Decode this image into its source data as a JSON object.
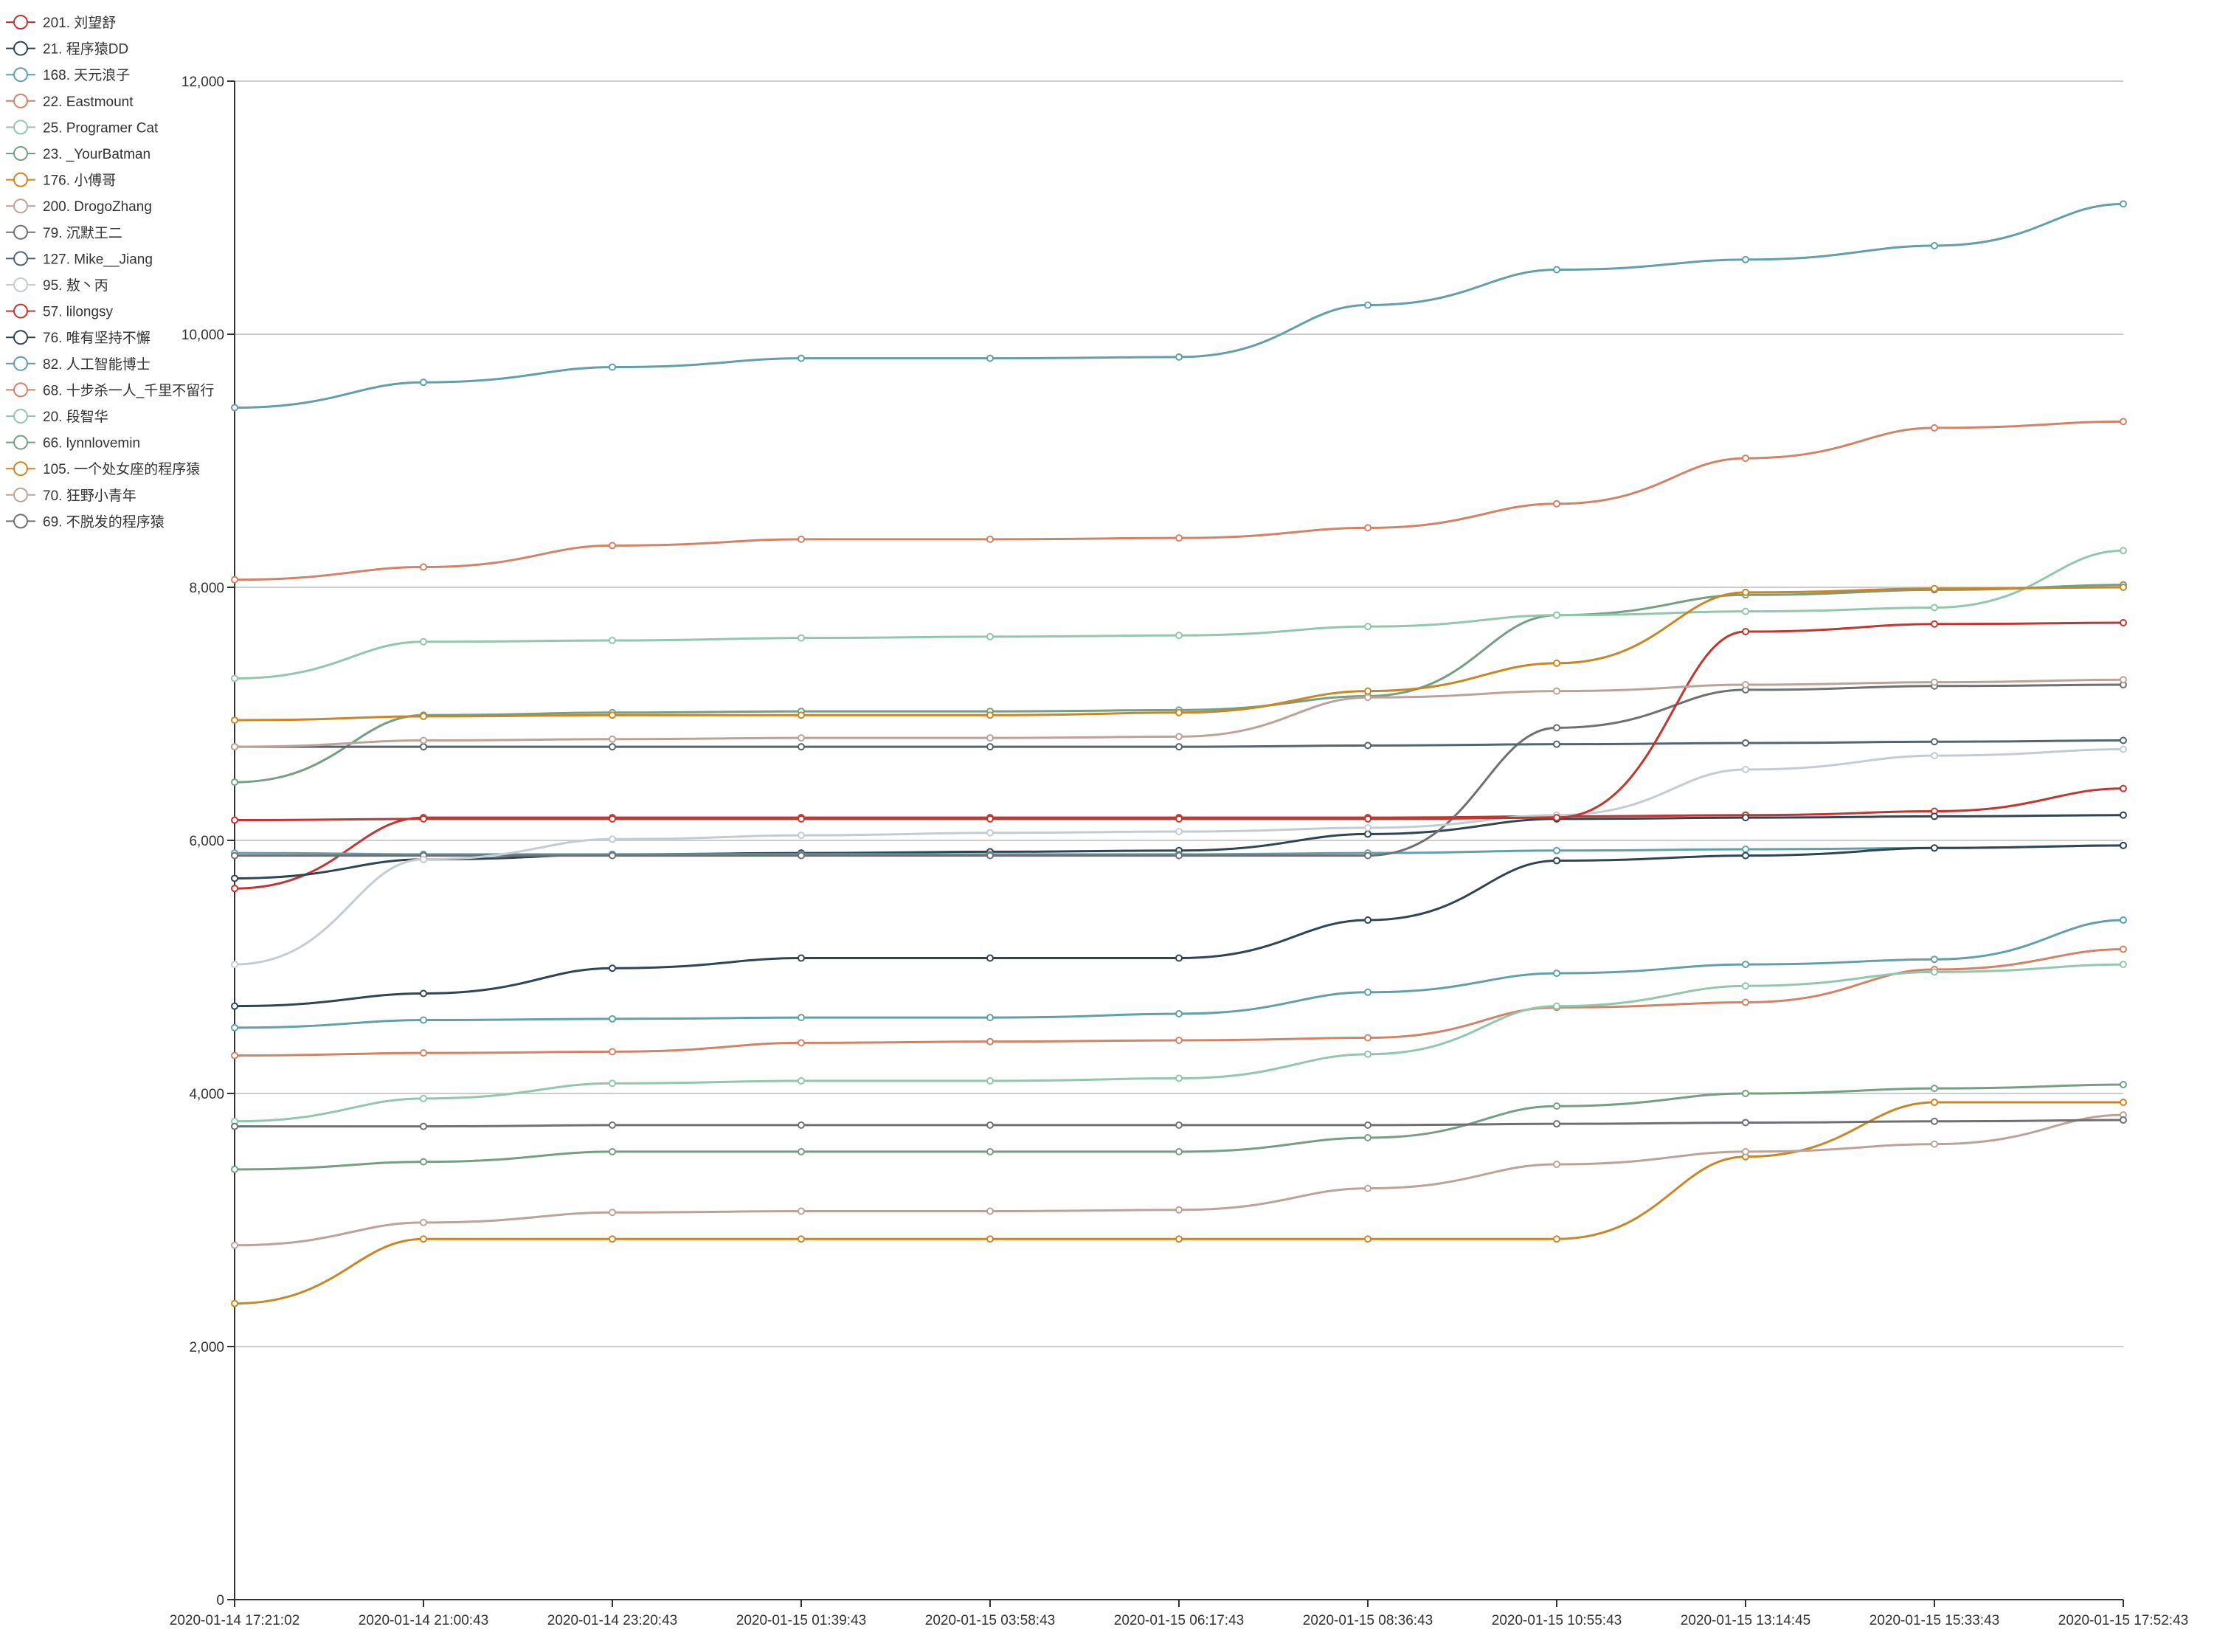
{
  "chart_data": {
    "type": "line",
    "title": "",
    "xlabel": "",
    "ylabel": "",
    "ylim": [
      0,
      12000
    ],
    "y_ticks": [
      0,
      2000,
      4000,
      6000,
      8000,
      10000,
      12000
    ],
    "y_tick_labels": [
      "0",
      "2,000",
      "4,000",
      "6,000",
      "8,000",
      "10,000",
      "12,000"
    ],
    "x_tick_labels": [
      "2020-01-14 17:21:02",
      "2020-01-14 21:00:43",
      "2020-01-14 23:20:43",
      "2020-01-15 01:39:43",
      "2020-01-15 03:58:43",
      "2020-01-15 06:17:43",
      "2020-01-15 08:36:43",
      "2020-01-15 10:55:43",
      "2020-01-15 13:14:45",
      "2020-01-15 15:33:43",
      "2020-01-15 17:52:43"
    ],
    "grid": "horizontal",
    "legend_position": "top-left",
    "series": [
      {
        "name": "201. 刘望舒",
        "color": "#c23531",
        "values": [
          5620,
          6180,
          6180,
          6180,
          6180,
          6180,
          6180,
          6190,
          6200,
          6230,
          6410
        ]
      },
      {
        "name": "21. 程序猿DD",
        "color": "#2f4554",
        "values": [
          5700,
          5850,
          5890,
          5900,
          5910,
          5920,
          6050,
          6170,
          6180,
          6190,
          6200
        ]
      },
      {
        "name": "168. 天元浪子",
        "color": "#61a0a8",
        "values": [
          5900,
          5890,
          5890,
          5890,
          5890,
          5890,
          5900,
          5920,
          5930,
          5940,
          5960
        ]
      },
      {
        "name": "22. Eastmount",
        "color": "#d48265",
        "values": [
          4300,
          4320,
          4330,
          4400,
          4410,
          4420,
          4440,
          4680,
          4720,
          4980,
          5140
        ]
      },
      {
        "name": "25. Programer Cat",
        "color": "#91c7ae",
        "values": [
          3780,
          3960,
          4080,
          4100,
          4100,
          4120,
          4310,
          4690,
          4850,
          4960,
          5020
        ]
      },
      {
        "name": "23. _YourBatman",
        "color": "#749f83",
        "values": [
          6460,
          6990,
          7010,
          7020,
          7020,
          7030,
          7140,
          7780,
          7940,
          7980,
          8020
        ]
      },
      {
        "name": "176. 小傅哥",
        "color": "#ca8622",
        "values": [
          2340,
          2850,
          2850,
          2850,
          2850,
          2850,
          2850,
          2850,
          3500,
          3930,
          3930
        ]
      },
      {
        "name": "200. DrogoZhang",
        "color": "#bda29a",
        "values": [
          2800,
          2980,
          3060,
          3070,
          3070,
          3080,
          3250,
          3440,
          3540,
          3600,
          3830
        ]
      },
      {
        "name": "79. 沉默王二",
        "color": "#6e7074",
        "values": [
          5880,
          5880,
          5880,
          5880,
          5880,
          5880,
          5880,
          6890,
          7190,
          7220,
          7230
        ]
      },
      {
        "name": "127. Mike__Jiang",
        "color": "#546570",
        "values": [
          6740,
          6740,
          6740,
          6740,
          6740,
          6740,
          6750,
          6760,
          6770,
          6780,
          6790
        ]
      },
      {
        "name": "95. 敖丶丙",
        "color": "#c4ccd3",
        "values": [
          5020,
          5850,
          6010,
          6040,
          6060,
          6070,
          6100,
          6200,
          6560,
          6670,
          6720
        ]
      },
      {
        "name": "57. lilongsy",
        "color": "#c23531",
        "values": [
          6160,
          6170,
          6170,
          6170,
          6170,
          6170,
          6170,
          6180,
          7650,
          7710,
          7720
        ]
      },
      {
        "name": "76. 唯有坚持不懈",
        "color": "#2f4554",
        "values": [
          4690,
          4790,
          4990,
          5070,
          5070,
          5070,
          5370,
          5840,
          5880,
          5940,
          5960
        ]
      },
      {
        "name": "82. 人工智能博士",
        "color": "#61a0a8",
        "values": [
          4520,
          4580,
          4590,
          4600,
          4600,
          4630,
          4800,
          4950,
          5020,
          5060,
          5370
        ]
      },
      {
        "name": "68. 十步杀一人_千里不留行",
        "color": "#d48265",
        "values": [
          8060,
          8160,
          8330,
          8380,
          8380,
          8390,
          8470,
          8660,
          9020,
          9260,
          9310
        ]
      },
      {
        "name": "20. 段智华",
        "color": "#91c7ae",
        "values": [
          7280,
          7570,
          7580,
          7600,
          7610,
          7620,
          7690,
          7780,
          7810,
          7840,
          8290
        ]
      },
      {
        "name": "66. lynnlovemin",
        "color": "#749f83",
        "values": [
          3400,
          3460,
          3540,
          3540,
          3540,
          3540,
          3650,
          3900,
          4000,
          4040,
          4070
        ]
      },
      {
        "name": "105. 一个处女座的程序猿",
        "color": "#ca8622",
        "values": [
          6950,
          6980,
          6990,
          6990,
          6990,
          7010,
          7180,
          7400,
          7960,
          7990,
          8000
        ]
      },
      {
        "name": "70. 狂野小青年",
        "color": "#bda29a",
        "values": [
          6740,
          6790,
          6800,
          6810,
          6810,
          6820,
          7130,
          7180,
          7230,
          7250,
          7270
        ]
      },
      {
        "name": "69. 不脱发的程序猿",
        "color": "#6e7074",
        "values": [
          3740,
          3740,
          3750,
          3750,
          3750,
          3750,
          3750,
          3760,
          3770,
          3780,
          3790
        ]
      },
      {
        "name": "",
        "color": "#61a0a8",
        "values": [
          9420,
          9620,
          9740,
          9810,
          9810,
          9820,
          10230,
          10510,
          10590,
          10700,
          11030
        ]
      }
    ]
  }
}
